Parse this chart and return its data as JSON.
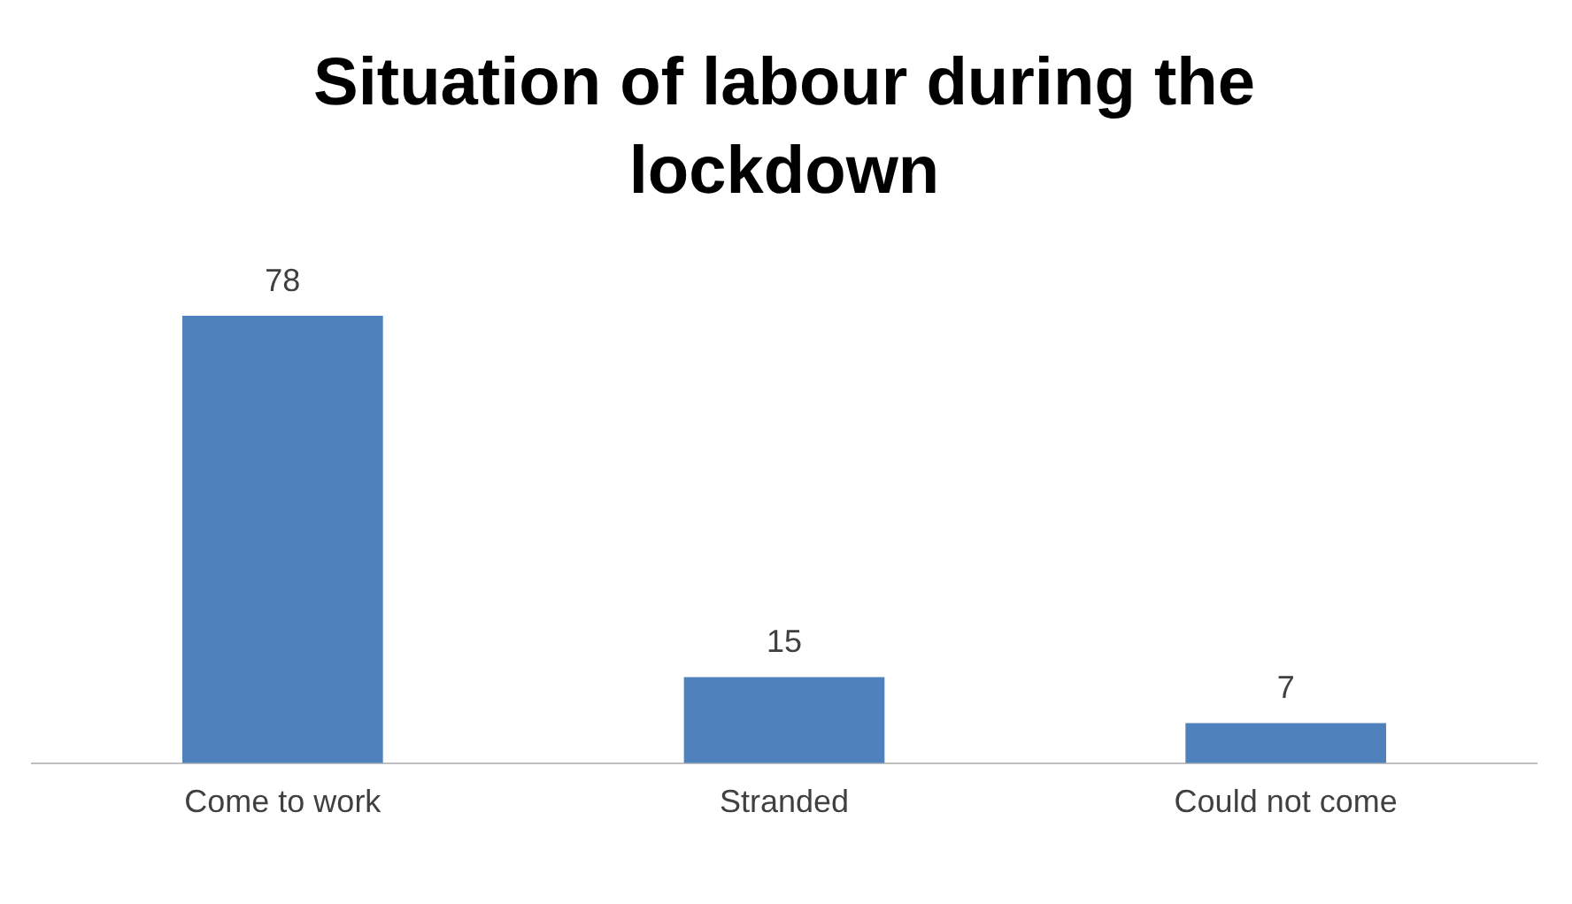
{
  "chart_data": {
    "type": "bar",
    "title": "Situation of labour during the lockdown",
    "categories": [
      "Come to work",
      "Stranded",
      "Could not come"
    ],
    "values": [
      78,
      15,
      7
    ],
    "color": "#4f81bd",
    "data_labels": true,
    "grid": false,
    "legend": false,
    "tick_labels": "x"
  }
}
